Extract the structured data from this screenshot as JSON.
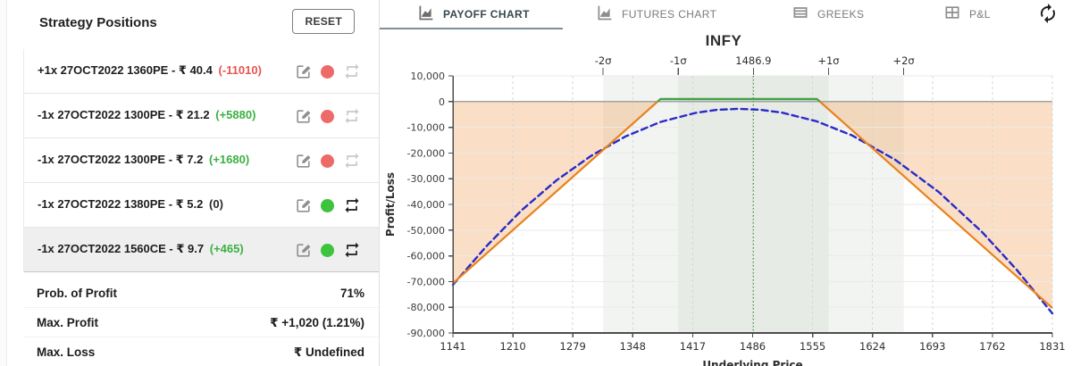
{
  "left_panel": {
    "title": "Strategy Positions",
    "reset_label": "RESET"
  },
  "positions": [
    {
      "label": "+1x 27OCT2022 1360PE - ₹ 40.4",
      "pnl": "(-11010)",
      "pnl_color": "red",
      "dot": "red",
      "repeat": "disabled",
      "selected": false
    },
    {
      "label": "-1x 27OCT2022 1300PE - ₹ 21.2",
      "pnl": "(+5880)",
      "pnl_color": "green",
      "dot": "red",
      "repeat": "disabled",
      "selected": false
    },
    {
      "label": "-1x 27OCT2022 1300PE - ₹ 7.2",
      "pnl": "(+1680)",
      "pnl_color": "green",
      "dot": "red",
      "repeat": "disabled",
      "selected": false
    },
    {
      "label": "-1x 27OCT2022 1380PE - ₹ 5.2",
      "pnl": "(0)",
      "pnl_color": "dark",
      "dot": "green",
      "repeat": "enabled",
      "selected": false
    },
    {
      "label": "-1x 27OCT2022 1560CE - ₹ 9.7",
      "pnl": "(+465)",
      "pnl_color": "green",
      "dot": "green",
      "repeat": "enabled",
      "selected": true
    }
  ],
  "stats": [
    {
      "label": "Prob. of Profit",
      "value": "71%"
    },
    {
      "label": "Max. Profit",
      "value": "₹ +1,020 (1.21%)"
    },
    {
      "label": "Max. Loss",
      "value": "₹ Undefined"
    }
  ],
  "tabs": [
    {
      "label": "PAYOFF CHART",
      "icon": "area-chart-icon",
      "active": true
    },
    {
      "label": "FUTURES CHART",
      "icon": "area-chart-icon",
      "active": false
    },
    {
      "label": "GREEKS",
      "icon": "list-table-icon",
      "active": false
    },
    {
      "label": "P&L",
      "icon": "grid-table-icon",
      "active": false
    }
  ],
  "chart_data": {
    "type": "line",
    "title": "INFY",
    "xlabel": "Underlying Price",
    "ylabel": "Profit/Loss",
    "xlim": [
      1141,
      1831
    ],
    "ylim": [
      -90000,
      10000
    ],
    "x_ticks": [
      1141,
      1210,
      1279,
      1348,
      1417,
      1486,
      1555,
      1624,
      1693,
      1762,
      1831
    ],
    "y_ticks": [
      10000,
      0,
      -10000,
      -20000,
      -30000,
      -40000,
      -50000,
      -60000,
      -70000,
      -80000,
      -90000
    ],
    "grid": true,
    "current_price": 1486.9,
    "sigma": {
      "labels": [
        "-2σ",
        "-1σ",
        "1486.9",
        "+1σ",
        "+2σ"
      ],
      "prices": [
        1313.9,
        1400.4,
        1486.9,
        1573.4,
        1659.9
      ]
    },
    "bands": {
      "outer": [
        1313.9,
        1659.9
      ],
      "inner": [
        1400.4,
        1573.4
      ]
    },
    "series": [
      {
        "name": "payoff-at-expiry",
        "style": "solid",
        "points": [
          [
            1141,
            -70680
          ],
          [
            1380,
            1020
          ],
          [
            1560,
            1020
          ],
          [
            1831,
            -80280
          ]
        ],
        "breakevens": [
          1376.6,
          1563.4
        ],
        "color_positive": "#43a047",
        "color_negative": "#e8821c",
        "fill_positive": "rgba(104,192,104,0.35)",
        "fill_negative": "rgba(238,148,65,0.30)"
      },
      {
        "name": "t0-payoff",
        "style": "dashed",
        "color": "#2a2ac9",
        "points": [
          [
            1141,
            -71300
          ],
          [
            1180,
            -56100
          ],
          [
            1220,
            -42300
          ],
          [
            1260,
            -30700
          ],
          [
            1300,
            -21100
          ],
          [
            1340,
            -13500
          ],
          [
            1380,
            -7900
          ],
          [
            1420,
            -4400
          ],
          [
            1445,
            -3200
          ],
          [
            1470,
            -2800
          ],
          [
            1495,
            -3200
          ],
          [
            1520,
            -4300
          ],
          [
            1560,
            -7700
          ],
          [
            1600,
            -13100
          ],
          [
            1650,
            -22600
          ],
          [
            1700,
            -35100
          ],
          [
            1750,
            -50700
          ],
          [
            1790,
            -65400
          ],
          [
            1831,
            -82400
          ]
        ]
      }
    ],
    "colors": {
      "outer_band": "#f2f4f1",
      "inner_band": "#e6ebe5",
      "zero_line": "#a3a3a3",
      "grid_h": "#eaeaea",
      "grid_v": "#d7d7d7",
      "axis": "#4d4d4d",
      "current_price_line": "#43a047"
    }
  }
}
